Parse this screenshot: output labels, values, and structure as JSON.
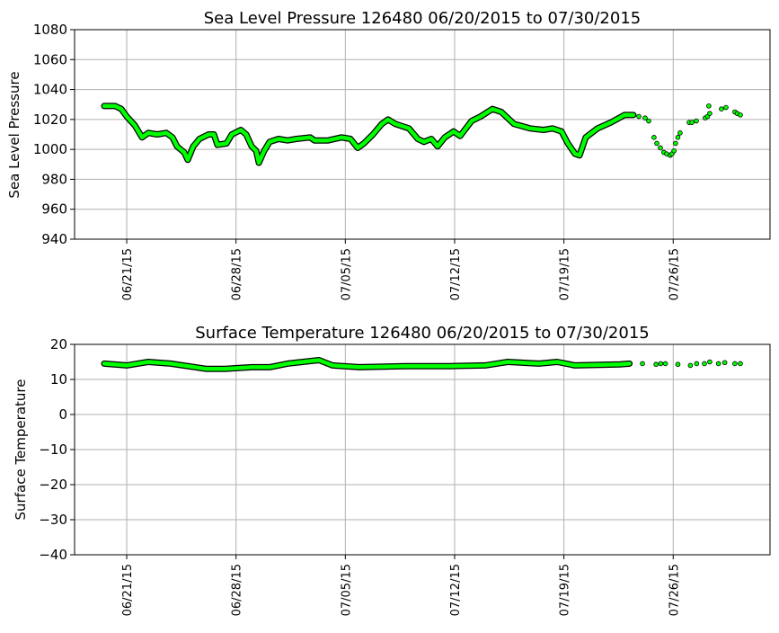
{
  "chart_data": [
    {
      "type": "scatter",
      "title": "Sea Level Pressure 126480  06/20/2015 to 07/30/2015",
      "xlabel": "",
      "ylabel": "Sea Level Pressure",
      "x_units": "days since 06/21/15",
      "xlim": [
        -3.34,
        41.2
      ],
      "ylim": [
        940,
        1080
      ],
      "yticks": [
        940,
        960,
        980,
        1000,
        1020,
        1040,
        1060,
        1080
      ],
      "xticks": [
        0,
        7,
        14,
        21,
        28,
        35
      ],
      "xtick_labels": [
        "06/21/15",
        "06/28/15",
        "07/05/15",
        "07/12/15",
        "07/19/15",
        "07/26/15"
      ],
      "grid": true,
      "marker_color": "#00ff00",
      "edge_color": "#000000",
      "segments": [
        [
          [
            -1.44,
            1029
          ],
          [
            -0.75,
            1029
          ],
          [
            -0.35,
            1027
          ],
          [
            0,
            1022
          ],
          [
            0.52,
            1016
          ],
          [
            0.98,
            1008
          ],
          [
            1.38,
            1011
          ],
          [
            1.96,
            1010
          ],
          [
            2.53,
            1011
          ],
          [
            2.93,
            1008
          ],
          [
            3.22,
            1002
          ],
          [
            3.68,
            998
          ],
          [
            3.91,
            993
          ],
          [
            4.26,
            1002
          ],
          [
            4.66,
            1007
          ],
          [
            5.24,
            1010
          ],
          [
            5.58,
            1010
          ],
          [
            5.81,
            1003
          ],
          [
            6.39,
            1004
          ],
          [
            6.73,
            1010
          ],
          [
            7.31,
            1013
          ],
          [
            7.65,
            1010
          ],
          [
            8.0,
            1002
          ],
          [
            8.29,
            999
          ],
          [
            8.46,
            991
          ],
          [
            8.8,
            999
          ],
          [
            9.15,
            1005
          ],
          [
            9.72,
            1007
          ],
          [
            10.3,
            1006
          ],
          [
            10.87,
            1007
          ],
          [
            11.74,
            1008
          ],
          [
            12.03,
            1006
          ],
          [
            12.89,
            1006
          ],
          [
            13.75,
            1008
          ],
          [
            14.33,
            1007
          ],
          [
            14.79,
            1001
          ],
          [
            15.19,
            1004
          ],
          [
            15.77,
            1010
          ],
          [
            16.34,
            1017
          ],
          [
            16.74,
            1020
          ],
          [
            17.2,
            1017
          ],
          [
            18.07,
            1014
          ],
          [
            18.64,
            1007
          ],
          [
            19.04,
            1005
          ],
          [
            19.51,
            1007
          ],
          [
            19.91,
            1002
          ],
          [
            20.37,
            1008
          ],
          [
            20.94,
            1012
          ],
          [
            21.35,
            1009
          ],
          [
            22.09,
            1019
          ],
          [
            22.67,
            1022
          ],
          [
            23.42,
            1027
          ],
          [
            23.99,
            1025
          ],
          [
            24.8,
            1017
          ],
          [
            25.83,
            1014
          ],
          [
            26.7,
            1013
          ],
          [
            27.27,
            1014
          ],
          [
            27.85,
            1012
          ],
          [
            28.25,
            1004
          ],
          [
            28.71,
            997
          ],
          [
            29.0,
            996
          ],
          [
            29.4,
            1008
          ],
          [
            30.15,
            1014
          ],
          [
            31.01,
            1018
          ],
          [
            31.88,
            1023
          ],
          [
            32.45,
            1023
          ]
        ]
      ],
      "points": [
        [
          32.8,
          1022
        ],
        [
          33.2,
          1021
        ],
        [
          33.43,
          1019
        ],
        [
          33.77,
          1008
        ],
        [
          33.95,
          1004
        ],
        [
          34.18,
          1001
        ],
        [
          34.4,
          998
        ],
        [
          34.58,
          997
        ],
        [
          34.8,
          996
        ],
        [
          34.92,
          997
        ],
        [
          35.05,
          999
        ],
        [
          35.15,
          1004
        ],
        [
          35.3,
          1008
        ],
        [
          35.44,
          1011
        ],
        [
          36.02,
          1018
        ],
        [
          36.2,
          1018
        ],
        [
          36.48,
          1019
        ],
        [
          37.05,
          1021
        ],
        [
          37.2,
          1022
        ],
        [
          37.34,
          1024
        ],
        [
          37.28,
          1029
        ],
        [
          38.09,
          1027
        ],
        [
          38.38,
          1028
        ],
        [
          38.95,
          1025
        ],
        [
          39.1,
          1024
        ],
        [
          39.3,
          1023
        ]
      ]
    },
    {
      "type": "scatter",
      "title": "Surface Temperature 126480  06/20/2015 to 07/30/2015",
      "xlabel": "",
      "ylabel": "Surface Temperature",
      "x_units": "days since 06/21/15",
      "xlim": [
        -3.34,
        41.2
      ],
      "ylim": [
        -40,
        20
      ],
      "yticks": [
        -40,
        -30,
        -20,
        -10,
        0,
        10,
        20
      ],
      "ytick_labels": [
        "−40",
        "−30",
        "−20",
        "−10",
        "0",
        "10",
        "20"
      ],
      "xticks": [
        0,
        7,
        14,
        21,
        28,
        35
      ],
      "xtick_labels": [
        "06/21/15",
        "06/28/15",
        "07/05/15",
        "07/12/15",
        "07/19/15",
        "07/26/15"
      ],
      "grid": true,
      "marker_color": "#00ff00",
      "edge_color": "#000000",
      "segments": [
        [
          [
            -1.44,
            14.5
          ],
          [
            0,
            14
          ],
          [
            1.38,
            15
          ],
          [
            2.82,
            14.5
          ],
          [
            5.12,
            13
          ],
          [
            6.27,
            13
          ],
          [
            8.0,
            13.5
          ],
          [
            9.15,
            13.5
          ],
          [
            10.3,
            14.5
          ],
          [
            12.31,
            15.5
          ],
          [
            13.18,
            14
          ],
          [
            14.9,
            13.5
          ],
          [
            17.78,
            13.8
          ],
          [
            20.66,
            13.8
          ],
          [
            22.96,
            14
          ],
          [
            24.4,
            15
          ],
          [
            26.4,
            14.5
          ],
          [
            27.56,
            15
          ],
          [
            28.71,
            14
          ],
          [
            31.6,
            14.3
          ],
          [
            32.2,
            14.5
          ]
        ]
      ],
      "points": [
        [
          33.03,
          14.5
        ],
        [
          33.9,
          14.3
        ],
        [
          34.2,
          14.5
        ],
        [
          34.5,
          14.5
        ],
        [
          35.3,
          14.3
        ],
        [
          36.1,
          14
        ],
        [
          36.5,
          14.5
        ],
        [
          37.0,
          14.5
        ],
        [
          37.34,
          15
        ],
        [
          37.9,
          14.5
        ],
        [
          38.3,
          14.8
        ],
        [
          38.95,
          14.5
        ],
        [
          39.3,
          14.5
        ]
      ]
    }
  ]
}
